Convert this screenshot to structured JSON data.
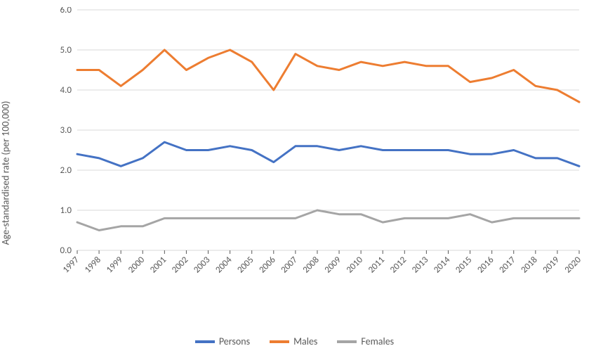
{
  "chart": {
    "type": "line",
    "ylabel": "Age-standardised rate (per 100,000)",
    "label_fontsize": 14,
    "tick_fontsize": 13,
    "background_color": "#ffffff",
    "grid_color": "#d9d9d9",
    "axis_color": "#d9d9d9",
    "tick_color": "#595959",
    "x_categories": [
      "1997",
      "1998",
      "1999",
      "2000",
      "2001",
      "2002",
      "2003",
      "2004",
      "2005",
      "2006",
      "2007",
      "2008",
      "2009",
      "2010",
      "2011",
      "2012",
      "2013",
      "2014",
      "2015",
      "2016",
      "2017",
      "2018",
      "2019",
      "2020"
    ],
    "x_tick_rotation": -45,
    "ylim": [
      0.0,
      6.0
    ],
    "ytick_step": 1.0,
    "ytick_decimals": 1,
    "line_width": 3,
    "series": [
      {
        "name": "Persons",
        "color": "#4472c4",
        "values": [
          2.4,
          2.3,
          2.1,
          2.3,
          2.7,
          2.5,
          2.5,
          2.6,
          2.5,
          2.2,
          2.6,
          2.6,
          2.5,
          2.6,
          2.5,
          2.5,
          2.5,
          2.5,
          2.4,
          2.4,
          2.5,
          2.3,
          2.3,
          2.1
        ]
      },
      {
        "name": "Males",
        "color": "#ed7d31",
        "values": [
          4.5,
          4.5,
          4.1,
          4.5,
          5.0,
          4.5,
          4.8,
          5.0,
          4.7,
          4.0,
          4.9,
          4.6,
          4.5,
          4.7,
          4.6,
          4.7,
          4.6,
          4.6,
          4.2,
          4.3,
          4.5,
          4.1,
          4.0,
          3.7
        ]
      },
      {
        "name": "Females",
        "color": "#a5a5a5",
        "values": [
          0.7,
          0.5,
          0.6,
          0.6,
          0.8,
          0.8,
          0.8,
          0.8,
          0.8,
          0.8,
          0.8,
          1.0,
          0.9,
          0.9,
          0.7,
          0.8,
          0.8,
          0.8,
          0.9,
          0.7,
          0.8,
          0.8,
          0.8,
          0.8
        ]
      }
    ],
    "legend": {
      "position": "bottom",
      "items": [
        {
          "label": "Persons",
          "color": "#4472c4"
        },
        {
          "label": "Males",
          "color": "#ed7d31"
        },
        {
          "label": "Females",
          "color": "#a5a5a5"
        }
      ]
    }
  }
}
